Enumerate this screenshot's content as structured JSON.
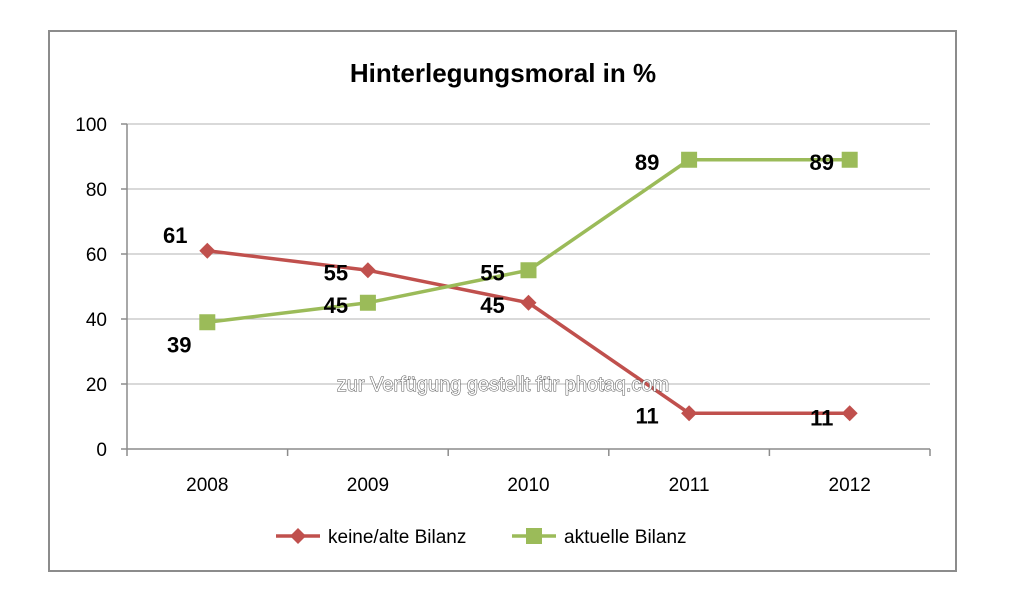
{
  "chart_data": {
    "type": "line",
    "title": "Hinterlegungsmoral in %",
    "xlabel": "",
    "ylabel": "",
    "categories": [
      "2008",
      "2009",
      "2010",
      "2011",
      "2012"
    ],
    "ylim": [
      0,
      100
    ],
    "yticks": [
      0,
      20,
      40,
      60,
      80,
      100
    ],
    "grid": true,
    "legend": "bottom",
    "series": [
      {
        "name": "keine/alte Bilanz",
        "values": [
          61,
          55,
          45,
          11,
          11
        ],
        "color": "#c0504d",
        "marker": "diamond"
      },
      {
        "name": "aktuelle Bilanz",
        "values": [
          39,
          45,
          55,
          89,
          89
        ],
        "color": "#9bbb59",
        "marker": "square"
      }
    ]
  },
  "watermark": "zur Verfügung gestellt für photaq.com"
}
